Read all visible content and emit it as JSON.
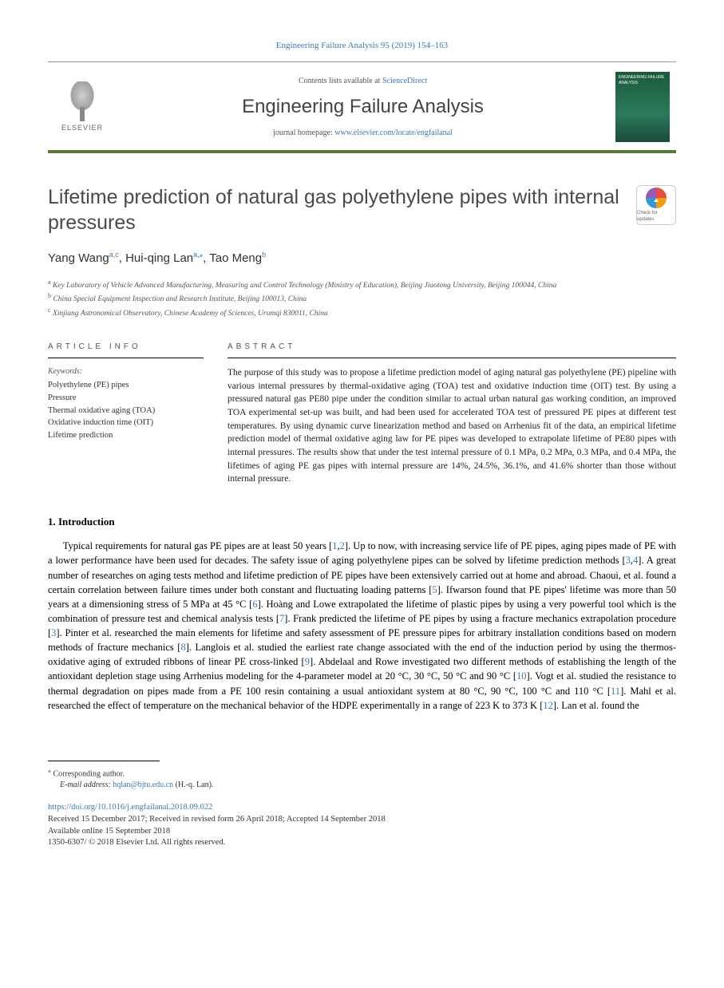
{
  "citation": "Engineering Failure Analysis 95 (2019) 154–163",
  "header": {
    "contents_prefix": "Contents lists available at ",
    "contents_link": "ScienceDirect",
    "journal": "Engineering Failure Analysis",
    "homepage_prefix": "journal homepage: ",
    "homepage_url": "www.elsevier.com/locate/engfailanal",
    "publisher": "ELSEVIER",
    "cover_text": "ENGINEERING FAILURE ANALYSIS"
  },
  "title": "Lifetime prediction of natural gas polyethylene pipes with internal pressures",
  "check_updates": "Check for updates",
  "authors_html": "Yang Wang<sup>a,c</sup>, Hui-qing Lan<sup>a,⁎</sup>, Tao Meng<sup>b</sup>",
  "affiliations": {
    "a": "Key Laboratory of Vehicle Advanced Manufacturing, Measuring and Control Technology (Ministry of Education), Beijing Jiaotong University, Beijing 100044, China",
    "b": "China Special Equipment Inspection and Research Institute, Beijing 100013, China",
    "c": "Xinjiang Astronomical Observatory, Chinese Academy of Sciences, Urumqi 830011, China"
  },
  "article_info": {
    "label": "ARTICLE INFO",
    "keywords_label": "Keywords:",
    "keywords": [
      "Polyethylene (PE) pipes",
      "Pressure",
      "Thermal oxidative aging (TOA)",
      "Oxidative induction time (OIT)",
      "Lifetime prediction"
    ]
  },
  "abstract": {
    "label": "ABSTRACT",
    "text": "The purpose of this study was to propose a lifetime prediction model of aging natural gas polyethylene (PE) pipeline with various internal pressures by thermal-oxidative aging (TOA) test and oxidative induction time (OIT) test. By using a pressured natural gas PE80 pipe under the condition similar to actual urban natural gas working condition, an improved TOA experimental set-up was built, and had been used for accelerated TOA test of pressured PE pipes at different test temperatures. By using dynamic curve linearization method and based on Arrhenius fit of the data, an empirical lifetime prediction model of thermal oxidative aging law for PE pipes was developed to extrapolate lifetime of PE80 pipes with internal pressures. The results show that under the test internal pressure of 0.1 MPa, 0.2 MPa, 0.3 MPa, and 0.4 MPa, the lifetimes of aging PE gas pipes with internal pressure are 14%, 24.5%, 36.1%, and 41.6% shorter than those without internal pressure."
  },
  "introduction": {
    "heading": "1. Introduction",
    "body_html": "Typical requirements for natural gas PE pipes are at least 50 years [<a>1</a>,<a>2</a>]. Up to now, with increasing service life of PE pipes, aging pipes made of PE with a lower performance have been used for decades. The safety issue of aging polyethylene pipes can be solved by lifetime prediction methods [<a>3</a>,<a>4</a>]. A great number of researches on aging tests method and lifetime prediction of PE pipes have been extensively carried out at home and abroad. Chaoui, et al. found a certain correlation between failure times under both constant and fluctuating loading patterns [<a>5</a>]. Ifwarson found that PE pipes' lifetime was more than 50 years at a dimensioning stress of 5 MPa at 45 °C [<a>6</a>]. Hoàng and Lowe extrapolated the lifetime of plastic pipes by using a very powerful tool which is the combination of pressure test and chemical analysis tests [<a>7</a>]. Frank predicted the lifetime of PE pipes by using a fracture mechanics extrapolation procedure [<a>3</a>]. Pinter et al. researched the main elements for lifetime and safety assessment of PE pressure pipes for arbitrary installation conditions based on modern methods of fracture mechanics [<a>8</a>]. Langlois et al. studied the earliest rate change associated with the end of the induction period by using the thermos-oxidative aging of extruded ribbons of linear PE cross-linked [<a>9</a>]. Abdelaal and Rowe investigated two different methods of establishing the length of the antioxidant depletion stage using Arrhenius modeling for the 4-parameter model at 20 °C, 30 °C, 50 °C and 90 °C [<a>10</a>]. Vogt et al. studied the resistance to thermal degradation on pipes made from a PE 100 resin containing a usual antioxidant system at 80 °C, 90 °C, 100 °C and 110 °C [<a>11</a>]. Mahl et al. researched the effect of temperature on the mechanical behavior of the HDPE experimentally in a range of 223 K to 373 K [<a>12</a>]. Lan et al. found the"
  },
  "footer": {
    "corresponding": "Corresponding author.",
    "email_label": "E-mail address: ",
    "email": "hqlan@bjtu.edu.cn",
    "email_name": " (H.-q. Lan).",
    "doi": "https://doi.org/10.1016/j.engfailanal.2018.09.022",
    "received": "Received 15 December 2017; Received in revised form 26 April 2018; Accepted 14 September 2018",
    "available": "Available online 15 September 2018",
    "copyright": "1350-6307/ © 2018 Elsevier Ltd. All rights reserved."
  },
  "colors": {
    "link": "#3a7ab5",
    "header_rule": "#5a7a3a",
    "text": "#000000",
    "muted": "#555555"
  }
}
